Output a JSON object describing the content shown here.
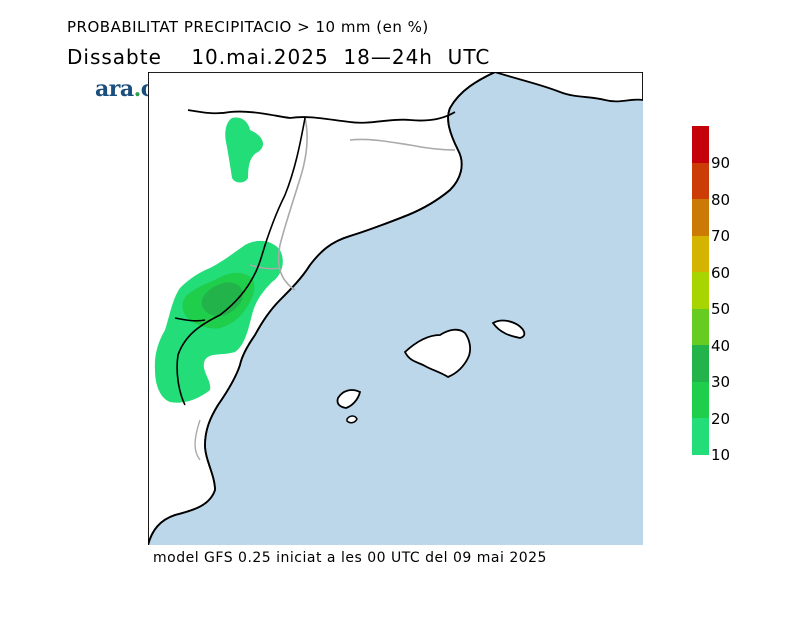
{
  "header": {
    "title": "PROBABILITAT PRECIPITACIO > 10 mm (en %)",
    "subtitle": "Dissabte    10.mai.2025  18—24h  UTC"
  },
  "logo": {
    "text_a": "ara",
    "text_dot": ".",
    "text_b": "cat"
  },
  "footer": {
    "text": "model GFS 0.25 iniciat a les 00 UTC del 09 mai 2025"
  },
  "colors": {
    "sea": "#bcd7ea",
    "land": "#ffffff",
    "coast": "#000000",
    "border": "#aaaaaa"
  },
  "legend": {
    "labels": [
      "90",
      "80",
      "70",
      "60",
      "50",
      "40",
      "30",
      "20",
      "10"
    ],
    "colors": [
      "#c4000a",
      "#cc3c06",
      "#cc7a06",
      "#d4b400",
      "#a8d400",
      "#66cc22",
      "#22b44a",
      "#1fce4a",
      "#22dd78"
    ]
  },
  "precip_zones": [
    {
      "name": "zone-north-10pct",
      "level": 10
    },
    {
      "name": "zone-west-10pct",
      "level": 10
    },
    {
      "name": "zone-west-20pct",
      "level": 20
    },
    {
      "name": "zone-west-30pct",
      "level": 30
    }
  ]
}
